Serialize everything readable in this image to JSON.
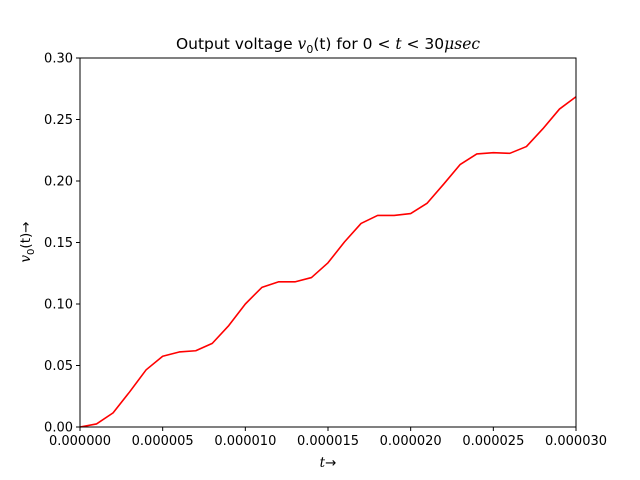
{
  "chart_data": {
    "type": "line",
    "title": {
      "prefix": "Output voltage ",
      "var": "v",
      "sub": "0",
      "args": "(t)",
      "middle": " for 0 < ",
      "t": "t",
      "lt": " < 30",
      "unit": "μsec"
    },
    "xlabel": {
      "var": "t",
      "arrow": "→"
    },
    "ylabel": {
      "var": "v",
      "sub": "0",
      "args": "(t)",
      "arrow": "→"
    },
    "xlim": [
      0,
      3e-05
    ],
    "ylim": [
      0,
      0.3
    ],
    "xticks": [
      0,
      5e-06,
      1e-05,
      1.5e-05,
      2e-05,
      2.5e-05,
      3e-05
    ],
    "xtick_labels": [
      "0.000000",
      "0.000005",
      "0.000010",
      "0.000015",
      "0.000020",
      "0.000025",
      "0.000030"
    ],
    "yticks": [
      0,
      0.05,
      0.1,
      0.15,
      0.2,
      0.25,
      0.3
    ],
    "ytick_labels": [
      "0.00",
      "0.05",
      "0.10",
      "0.15",
      "0.20",
      "0.25",
      "0.30"
    ],
    "grid": false,
    "series": [
      {
        "color": "#ff0000",
        "x": [
          0,
          1e-06,
          2e-06,
          3e-06,
          4e-06,
          5e-06,
          6e-06,
          7e-06,
          8e-06,
          9e-06,
          1e-05,
          1.1e-05,
          1.2e-05,
          1.3e-05,
          1.4e-05,
          1.5e-05,
          1.6e-05,
          1.7e-05,
          1.8e-05,
          1.9e-05,
          2e-05,
          2.1e-05,
          2.2e-05,
          2.3e-05,
          2.4e-05,
          2.5e-05,
          2.6e-05,
          2.7e-05,
          2.8e-05,
          2.9e-05,
          3e-05
        ],
        "y": [
          0.0,
          0.0025,
          0.0115,
          0.0285,
          0.0465,
          0.0575,
          0.061,
          0.062,
          0.068,
          0.0825,
          0.1,
          0.1135,
          0.118,
          0.118,
          0.1215,
          0.1335,
          0.1505,
          0.1655,
          0.172,
          0.172,
          0.1735,
          0.182,
          0.1975,
          0.2135,
          0.222,
          0.223,
          0.2225,
          0.228,
          0.2425,
          0.2585,
          0.2685
        ]
      }
    ]
  }
}
